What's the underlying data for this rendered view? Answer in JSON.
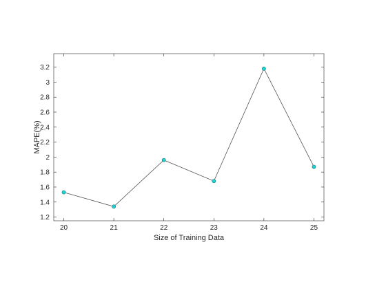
{
  "chart_data": {
    "type": "line",
    "title": "",
    "xlabel": "Size of Training Data",
    "ylabel": "MAPE(%)",
    "x": [
      20,
      21,
      22,
      23,
      24,
      25
    ],
    "xlim": [
      19.8,
      25.2
    ],
    "ylim": [
      1.15,
      3.38
    ],
    "xticks": [
      20,
      21,
      22,
      23,
      24,
      25
    ],
    "yticks": [
      1.2,
      1.4,
      1.6,
      1.8,
      2,
      2.2,
      2.4,
      2.6,
      2.8,
      3,
      3.2
    ],
    "ytick_labels": [
      "1.2",
      "1.4",
      "1.6",
      "1.8",
      "2",
      "2.2",
      "2.4",
      "2.6",
      "2.8",
      "3",
      "3.2"
    ],
    "series": [
      {
        "values": [
          1.53,
          1.34,
          1.96,
          1.68,
          3.18,
          1.87
        ]
      }
    ],
    "grid": false,
    "colors": {
      "line": "#555555",
      "marker_fill": "#1fd3d3",
      "marker_edge": "#1a7a7a",
      "axis": "#262626"
    }
  }
}
